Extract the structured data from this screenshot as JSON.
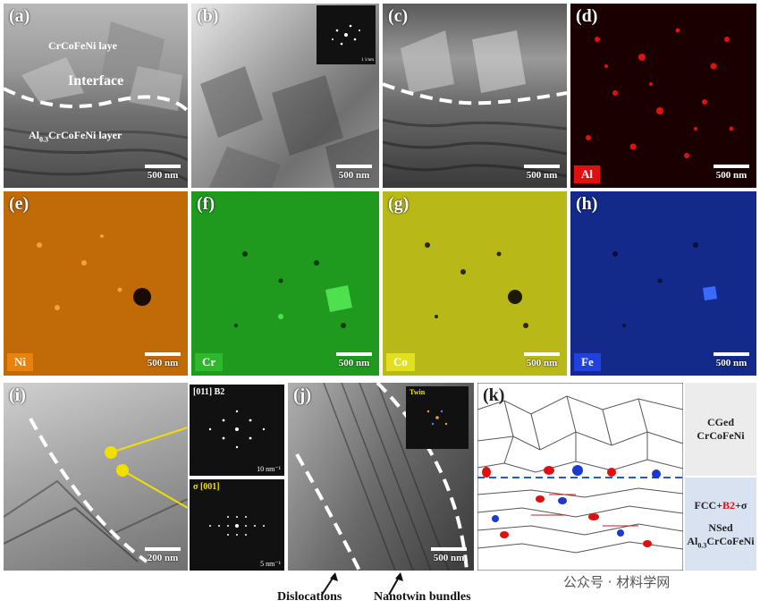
{
  "panels": {
    "a": {
      "label": "(a)",
      "top_text": "CrCoFeNi laye",
      "interface": "Interface",
      "bottom_text_main": "Al",
      "bottom_text_sub": "0.3",
      "bottom_text_tail": "CrCoFeNi layer",
      "scale": "500 nm"
    },
    "b": {
      "label": "(b)",
      "scale": "500 nm",
      "inset_scale": "1 1/nm"
    },
    "c": {
      "label": "(c)",
      "scale": "500 nm"
    },
    "d": {
      "label": "(d)",
      "element": "Al",
      "scale": "500 nm",
      "color": "#e01010"
    },
    "e": {
      "label": "(e)",
      "element": "Ni",
      "scale": "500 nm",
      "color": "#e8820f"
    },
    "f": {
      "label": "(f)",
      "element": "Cr",
      "scale": "500 nm",
      "color": "#2eb82e"
    },
    "g": {
      "label": "(g)",
      "element": "Co",
      "scale": "500 nm",
      "color": "#e0e020"
    },
    "h": {
      "label": "(h)",
      "element": "Fe",
      "scale": "500 nm",
      "color": "#2040e0"
    },
    "i": {
      "label": "(i)",
      "scale": "200 nm",
      "inset_top": "[011] B2",
      "inset_top_scale": "10 nm⁻¹",
      "inset_bottom": "σ [001]",
      "inset_bottom_scale": "5 nm⁻¹"
    },
    "j": {
      "label": "(j)",
      "scale": "500 nm",
      "inset": "Twin"
    },
    "k": {
      "label": "(k)",
      "top_right": "CGed",
      "top_right2": "CrCoFeNi",
      "legend_a": "FCC+",
      "legend_b": "B2",
      "legend_c": "+σ",
      "bottom_right": "NSed",
      "bottom_right2_main": "Al",
      "bottom_right2_sub": "0.3",
      "bottom_right2_tail": "CrCoFeNi"
    }
  },
  "captions": {
    "dislocations": "Dislocations",
    "nanotwin": "Nanotwin bundles"
  },
  "watermark": "公众号 · 材料学网"
}
